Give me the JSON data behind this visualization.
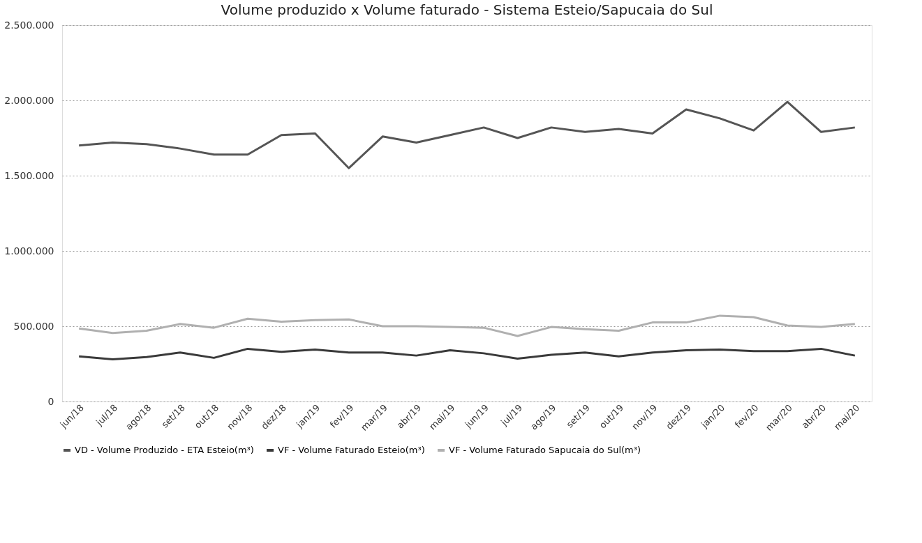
{
  "chart_data": {
    "type": "line",
    "title": "Volume produzido x Volume faturado - Sistema Esteio/Sapucaia do Sul",
    "categories": [
      "jun/18",
      "jul/18",
      "ago/18",
      "set/18",
      "out/18",
      "nov/18",
      "dez/18",
      "jan/19",
      "fev/19",
      "mar/19",
      "abr/19",
      "mai/19",
      "jun/19",
      "jul/19",
      "ago/19",
      "set/19",
      "out/19",
      "nov/19",
      "dez/19",
      "jan/20",
      "fev/20",
      "mar/20",
      "abr/20",
      "mai/20"
    ],
    "series": [
      {
        "name": "VD - Volume Produzido - ETA Esteio(m³)",
        "color": "#555555",
        "values": [
          1700000,
          1720000,
          1710000,
          1680000,
          1640000,
          1640000,
          1770000,
          1780000,
          1550000,
          1760000,
          1720000,
          1770000,
          1820000,
          1750000,
          1820000,
          1790000,
          1810000,
          1780000,
          1940000,
          1880000,
          1800000,
          1990000,
          1790000,
          1820000
        ]
      },
      {
        "name": "VF - Volume Faturado Esteio(m³)",
        "color": "#3a3a3a",
        "values": [
          300000,
          280000,
          295000,
          325000,
          290000,
          350000,
          330000,
          345000,
          325000,
          325000,
          305000,
          340000,
          320000,
          285000,
          310000,
          325000,
          300000,
          325000,
          340000,
          345000,
          335000,
          335000,
          350000,
          305000
        ]
      },
      {
        "name": "VF - Volume Faturado Sapucaia do Sul(m³)",
        "color": "#b0b0b0",
        "values": [
          485000,
          455000,
          470000,
          515000,
          490000,
          550000,
          530000,
          540000,
          545000,
          500000,
          500000,
          495000,
          490000,
          435000,
          495000,
          480000,
          470000,
          525000,
          525000,
          570000,
          560000,
          505000,
          495000,
          515000
        ]
      }
    ],
    "ylim": [
      0,
      2500000
    ],
    "yticks": [
      0,
      {
        "value": 500000,
        "label": "500.000"
      },
      {
        "value": 1000000,
        "label": "1.000.000"
      },
      {
        "value": 1500000,
        "label": "1.500.000"
      },
      {
        "value": 2000000,
        "label": "2.000.000"
      },
      {
        "value": 2500000,
        "label": "2.500.000"
      }
    ],
    "grid": "y",
    "legend": "bottom",
    "marker": "none",
    "line_style": "solid"
  }
}
